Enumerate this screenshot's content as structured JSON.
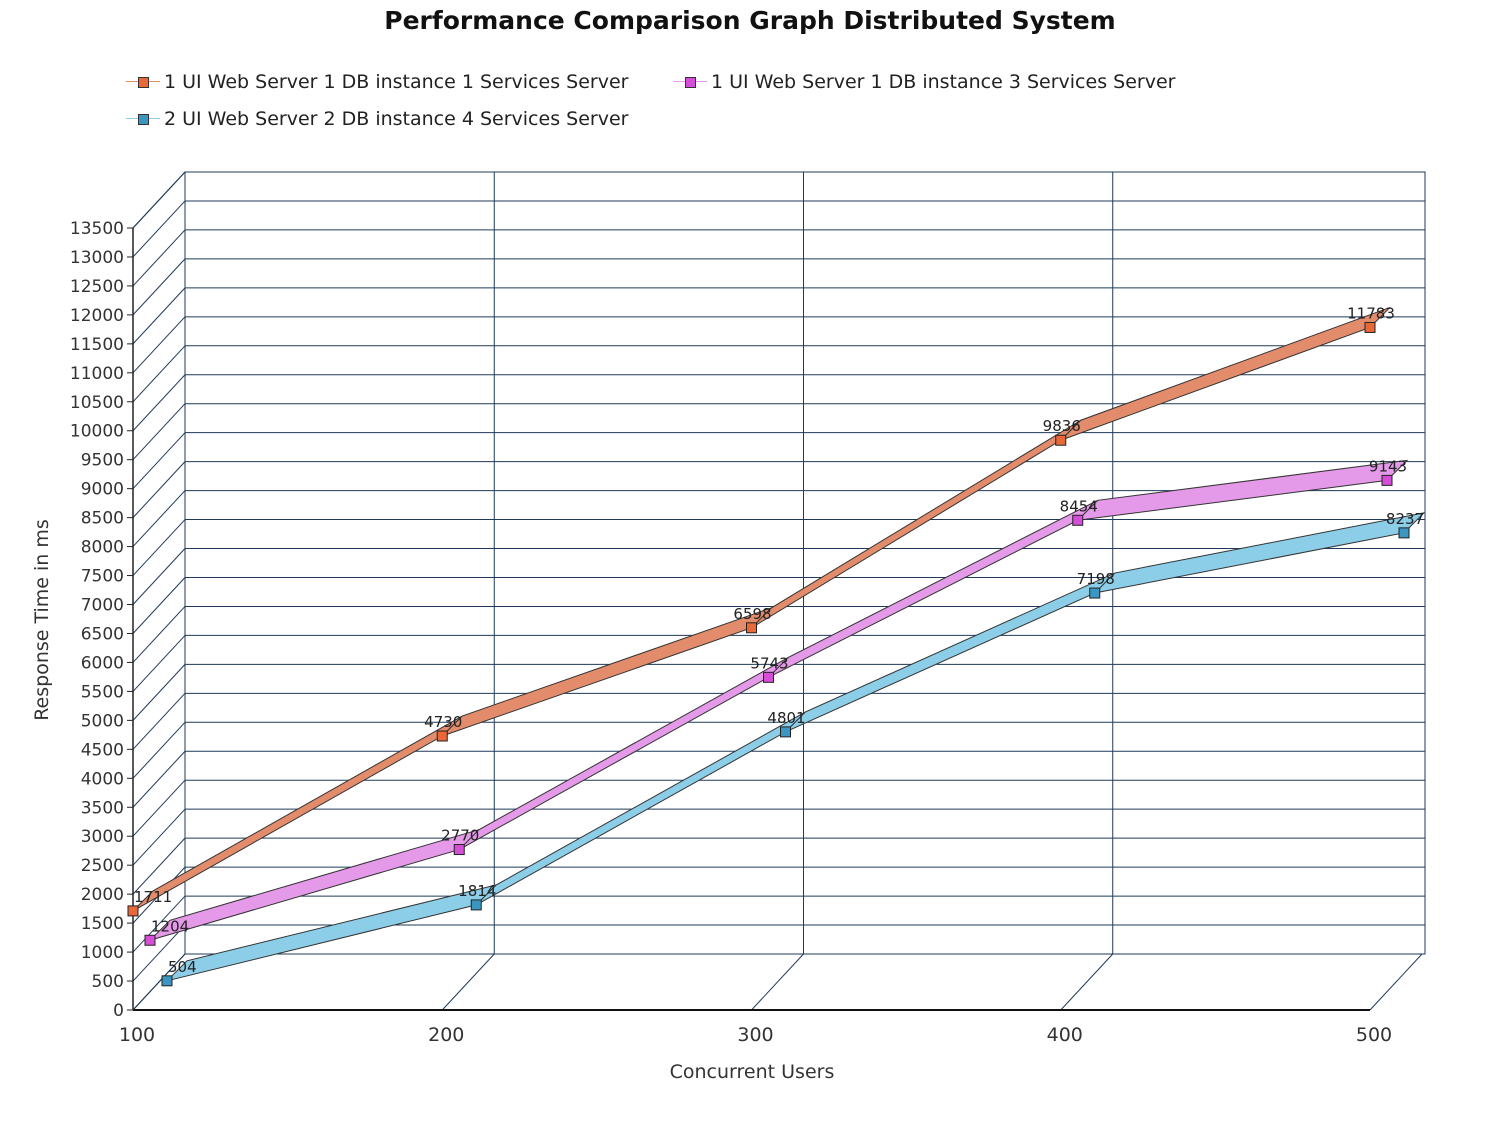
{
  "chart_data": {
    "type": "line",
    "title": "Performance Comparison Graph Distributed System",
    "xlabel": "Concurrent Users",
    "ylabel": "Response Time in ms",
    "x": [
      100,
      200,
      300,
      400,
      500
    ],
    "xticks": [
      "100",
      "200",
      "300",
      "400",
      "500"
    ],
    "yticks": [
      "0",
      "500",
      "1000",
      "1500",
      "2000",
      "2500",
      "3000",
      "3500",
      "4000",
      "4500",
      "5000",
      "5500",
      "6000",
      "6500",
      "7000",
      "7500",
      "8000",
      "8500",
      "9000",
      "9500",
      "10000",
      "10500",
      "11000",
      "11500",
      "12000",
      "12500",
      "13000",
      "13500"
    ],
    "ylim": [
      0,
      13500
    ],
    "grid": true,
    "legend_position": "top-left",
    "style": "3d-ribbon",
    "series": [
      {
        "name": "1 UI Web Server 1 DB instance 1 Services Server",
        "values": [
          1711,
          4730,
          6598,
          9836,
          11783
        ],
        "labels": [
          "1711",
          "4730",
          "6598",
          "9836",
          "11783"
        ],
        "color": "#e38c6c",
        "marker": "#e9683a"
      },
      {
        "name": "1 UI Web Server 1 DB instance 3 Services Server",
        "values": [
          1204,
          2770,
          5743,
          8454,
          9143
        ],
        "labels": [
          "1204",
          "2770",
          "5743",
          "8454",
          "9143"
        ],
        "color": "#e49ae8",
        "marker": "#d44ed8"
      },
      {
        "name": "2 UI Web Server 2 DB instance 4 Services Server",
        "values": [
          504,
          1814,
          4801,
          7198,
          8237
        ],
        "labels": [
          "504",
          "1814",
          "4801",
          "7198",
          "8237"
        ],
        "color": "#8ccde8",
        "marker": "#3b97c2"
      }
    ]
  }
}
